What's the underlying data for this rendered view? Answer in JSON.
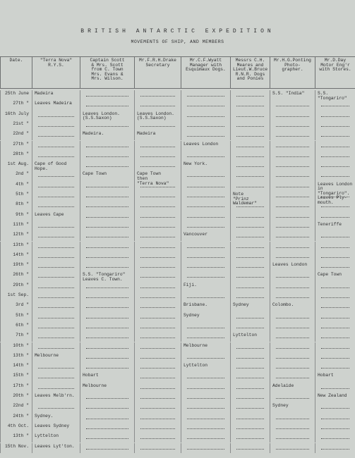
{
  "header": {
    "title": "BRITISH ANTARCTIC EXPEDITION",
    "subtitle": "MOVEMENTS OF SHIP, AND MEMBERS"
  },
  "table": {
    "columns": [
      "Date.",
      "\"Terra Nova\"\nR.Y.S.",
      "Captain Scott\n& Mrs. Scott\nfrom C. Town\nMrs. Evans &\nMrs. Wilson.",
      "Mr.F.R.H.Drake\nSecretary",
      "Mr.C.F.Wyatt\nManager with\nEsquimaux Dogs.",
      "Messrs C.H.\nMeares and\nLieut.W.Bruce\nR.N.R. Dogs\nand Ponies",
      "Mr.H.G.Ponting\nPhoto-\ngrapher.",
      "Mr.D.Day\nMotor Eng'r\nwith Stores."
    ],
    "rows": [
      [
        "25th June",
        "Madeira",
        null,
        null,
        null,
        null,
        "S.S. \"India\"",
        "S.S.\n\"Tongariro\""
      ],
      [
        "27th  \"",
        "Leaves Madeira",
        null,
        null,
        null,
        null,
        null,
        null
      ],
      [
        "16th July",
        null,
        "Leaves London.\n(S.S.Saxon)",
        "Leaves London.\n(S.S.Saxon)",
        null,
        null,
        null,
        null
      ],
      [
        "21st  \"",
        null,
        null,
        null,
        null,
        null,
        null,
        null
      ],
      [
        "22nd  \"",
        null,
        "Madeira.",
        "Madeira",
        null,
        null,
        null,
        null
      ],
      [
        "27th  \"",
        null,
        null,
        null,
        "Leaves London",
        null,
        null,
        null
      ],
      [
        "28th  \"",
        null,
        null,
        null,
        null,
        null,
        null,
        null
      ],
      [
        "1st Aug.",
        "Cape of Good\nHope.",
        null,
        null,
        "New York.",
        null,
        null,
        null
      ],
      [
        "2nd  \"",
        null,
        "Cape Town",
        "Cape Town\nthen\n\"Terra Nova\"",
        null,
        null,
        null,
        null
      ],
      [
        "4th  \"",
        null,
        null,
        null,
        null,
        null,
        null,
        "Leaves London\nin\n\"Tongariro\".\nLeaves Ply-\nmouth."
      ],
      [
        "5th  \"",
        null,
        null,
        null,
        null,
        "Note\n\"Prinz\nWaldemar\"",
        null,
        null
      ],
      [
        "8th  \"",
        null,
        null,
        null,
        null,
        null,
        null,
        null
      ],
      [
        "9th  \"",
        "Leaves Cape",
        null,
        null,
        null,
        null,
        null,
        null
      ],
      [
        "11th  \"",
        null,
        null,
        null,
        null,
        null,
        null,
        "Teneriffe"
      ],
      [
        "12th  \"",
        null,
        null,
        null,
        "Vancouver",
        null,
        null,
        null
      ],
      [
        "13th  \"",
        null,
        null,
        null,
        null,
        null,
        null,
        null
      ],
      [
        "14th  \"",
        null,
        null,
        null,
        null,
        null,
        null,
        null
      ],
      [
        "19th  \"",
        null,
        null,
        null,
        null,
        null,
        "Leaves London",
        null
      ],
      [
        "26th  \"",
        null,
        "S.S. \"Tongariro\"\nLeaves C. Town.",
        null,
        null,
        null,
        null,
        "Cape Town"
      ],
      [
        "29th  \"",
        null,
        null,
        null,
        "Fiji.",
        null,
        null,
        null
      ],
      [
        "1st Sep.",
        null,
        null,
        null,
        null,
        null,
        null,
        null
      ],
      [
        "3rd  \"",
        null,
        null,
        null,
        "Brisbane.",
        "Sydney",
        "Colombo.",
        null
      ],
      [
        "5th  \"",
        null,
        null,
        null,
        "Sydney",
        null,
        null,
        null
      ],
      [
        "6th  \"",
        null,
        null,
        null,
        null,
        null,
        null,
        null
      ],
      [
        "7th  \"",
        null,
        null,
        null,
        null,
        "Lyttelton",
        null,
        null
      ],
      [
        "10th  \"",
        null,
        null,
        null,
        "Melbourne",
        null,
        null,
        null
      ],
      [
        "13th  \"",
        "Melbourne",
        null,
        null,
        null,
        null,
        null,
        null
      ],
      [
        "14th  \"",
        null,
        null,
        null,
        "Lyttelton",
        null,
        null,
        null
      ],
      [
        "15th  \"",
        null,
        "Hobart",
        null,
        null,
        null,
        null,
        "Hobart"
      ],
      [
        "17th  \"",
        null,
        "Melbourne",
        null,
        null,
        null,
        "Adelaide",
        null
      ],
      [
        "20th  \"",
        "Leaves Melb'rn.",
        null,
        null,
        null,
        null,
        null,
        "New Zealand"
      ],
      [
        "22nd  \"",
        null,
        null,
        null,
        null,
        null,
        "Sydney",
        null
      ],
      [
        "24th  \"",
        "Sydney.",
        null,
        null,
        null,
        null,
        null,
        null
      ],
      [
        "4th Oct.",
        "Leaves Sydney",
        null,
        null,
        null,
        null,
        null,
        null
      ],
      [
        "13th  \"",
        "Lyttelton",
        null,
        null,
        null,
        null,
        null,
        null
      ],
      [
        "15th Nov.",
        "Leaves Lyt'ton.",
        null,
        null,
        null,
        null,
        null,
        null
      ]
    ]
  }
}
